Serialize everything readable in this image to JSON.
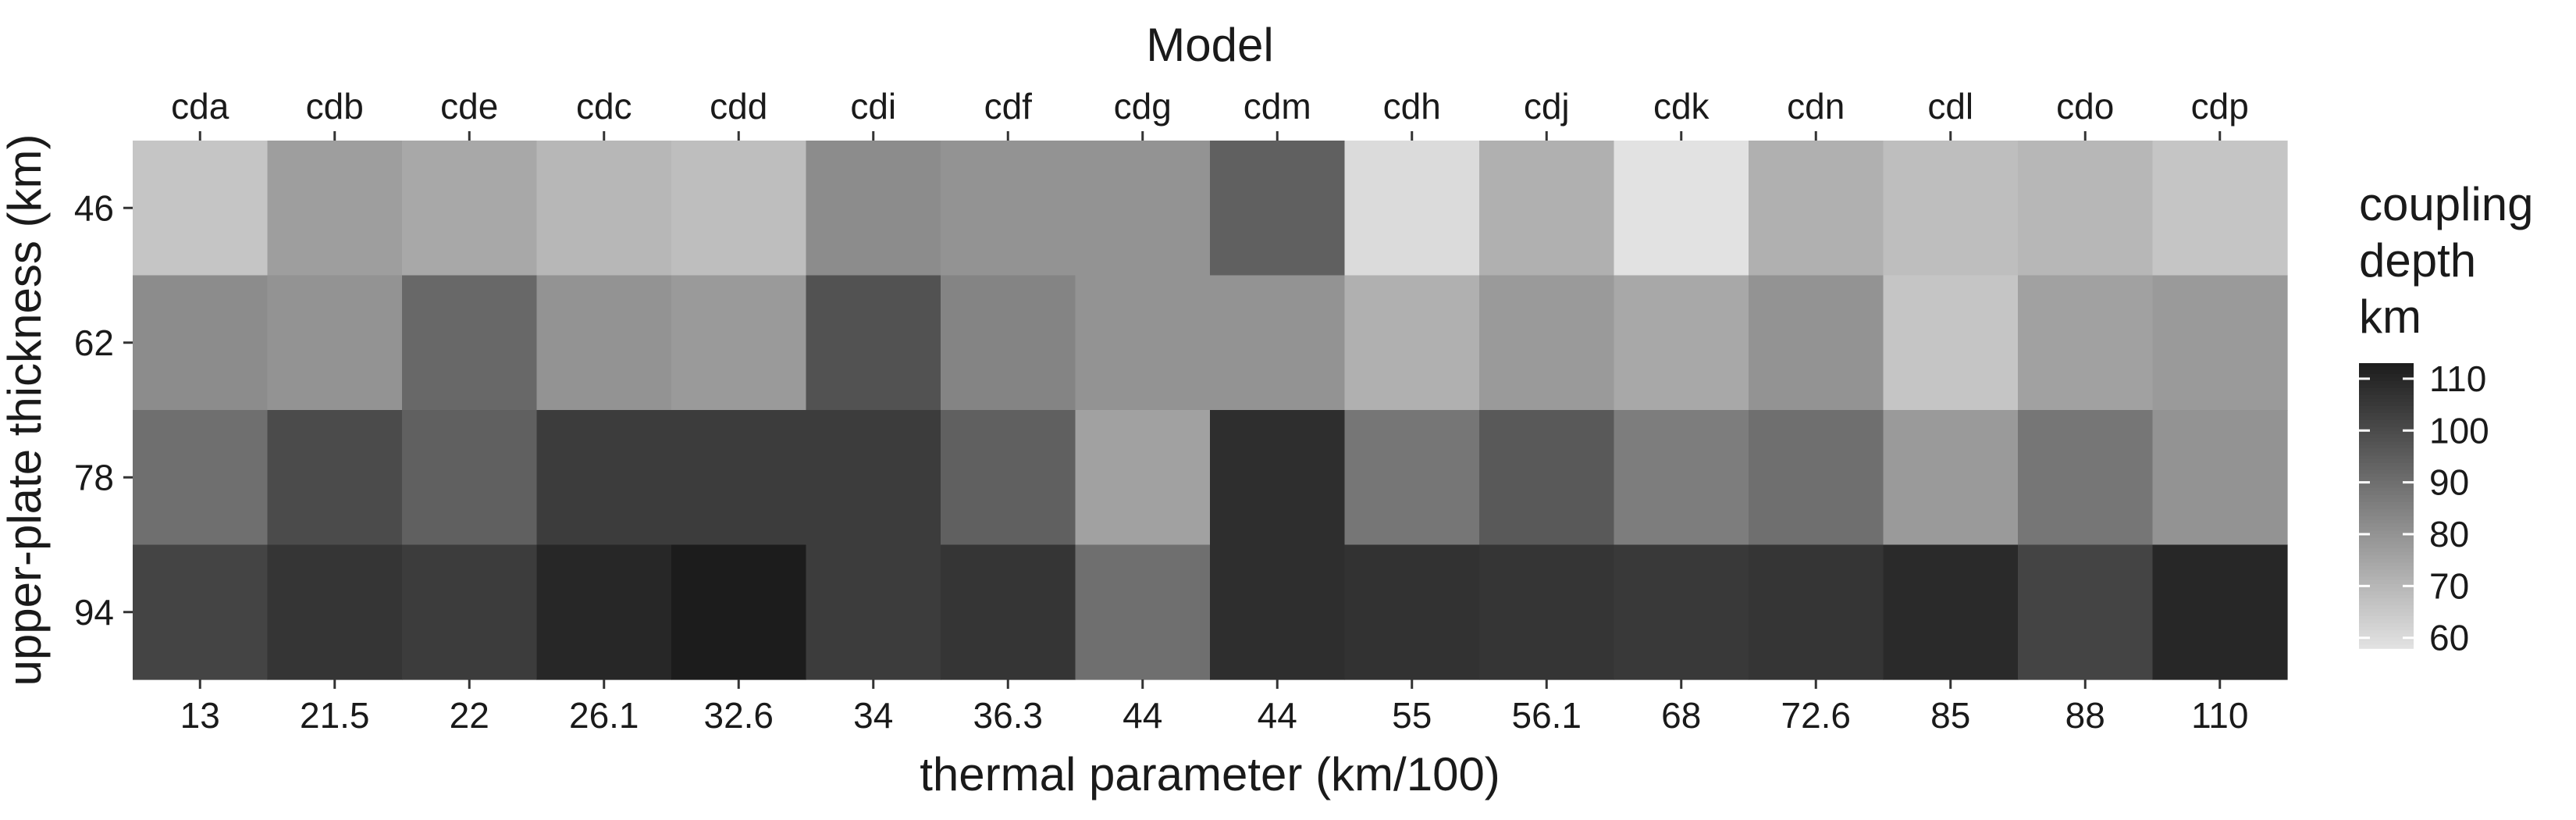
{
  "chart_data": {
    "type": "heatmap",
    "title": "Model",
    "xlabel": "thermal parameter (km/100)",
    "ylabel": "upper-plate thickness (km)",
    "models": [
      "cda",
      "cdb",
      "cde",
      "cdc",
      "cdd",
      "cdi",
      "cdf",
      "cdg",
      "cdm",
      "cdh",
      "cdj",
      "cdk",
      "cdn",
      "cdl",
      "cdo",
      "cdp"
    ],
    "thermal_parameter_labels": [
      "13",
      "21.5",
      "22",
      "26.1",
      "32.6",
      "34",
      "36.3",
      "44",
      "44",
      "55",
      "56.1",
      "68",
      "72.6",
      "85",
      "88",
      "110"
    ],
    "upper_plate_thickness": [
      "46",
      "62",
      "78",
      "94"
    ],
    "values": [
      [
        66,
        77,
        74,
        70,
        68,
        82,
        80,
        80,
        94,
        60,
        72,
        58,
        72,
        68,
        70,
        66
      ],
      [
        82,
        80,
        92,
        80,
        78,
        98,
        84,
        80,
        80,
        72,
        78,
        74,
        80,
        66,
        76,
        78
      ],
      [
        90,
        100,
        94,
        104,
        104,
        104,
        94,
        76,
        108,
        88,
        96,
        86,
        90,
        78,
        88,
        80
      ],
      [
        102,
        106,
        104,
        110,
        113,
        104,
        106,
        90,
        108,
        107,
        106,
        105,
        106,
        109,
        102,
        110
      ]
    ],
    "colorbar": {
      "title_lines": [
        "coupling",
        "depth",
        "km"
      ],
      "ticks": [
        "110",
        "100",
        "90",
        "80",
        "70",
        "60"
      ],
      "range": [
        58,
        113
      ]
    },
    "colors": {
      "low": "#e2e2e2",
      "high": "#1c1c1c"
    }
  }
}
